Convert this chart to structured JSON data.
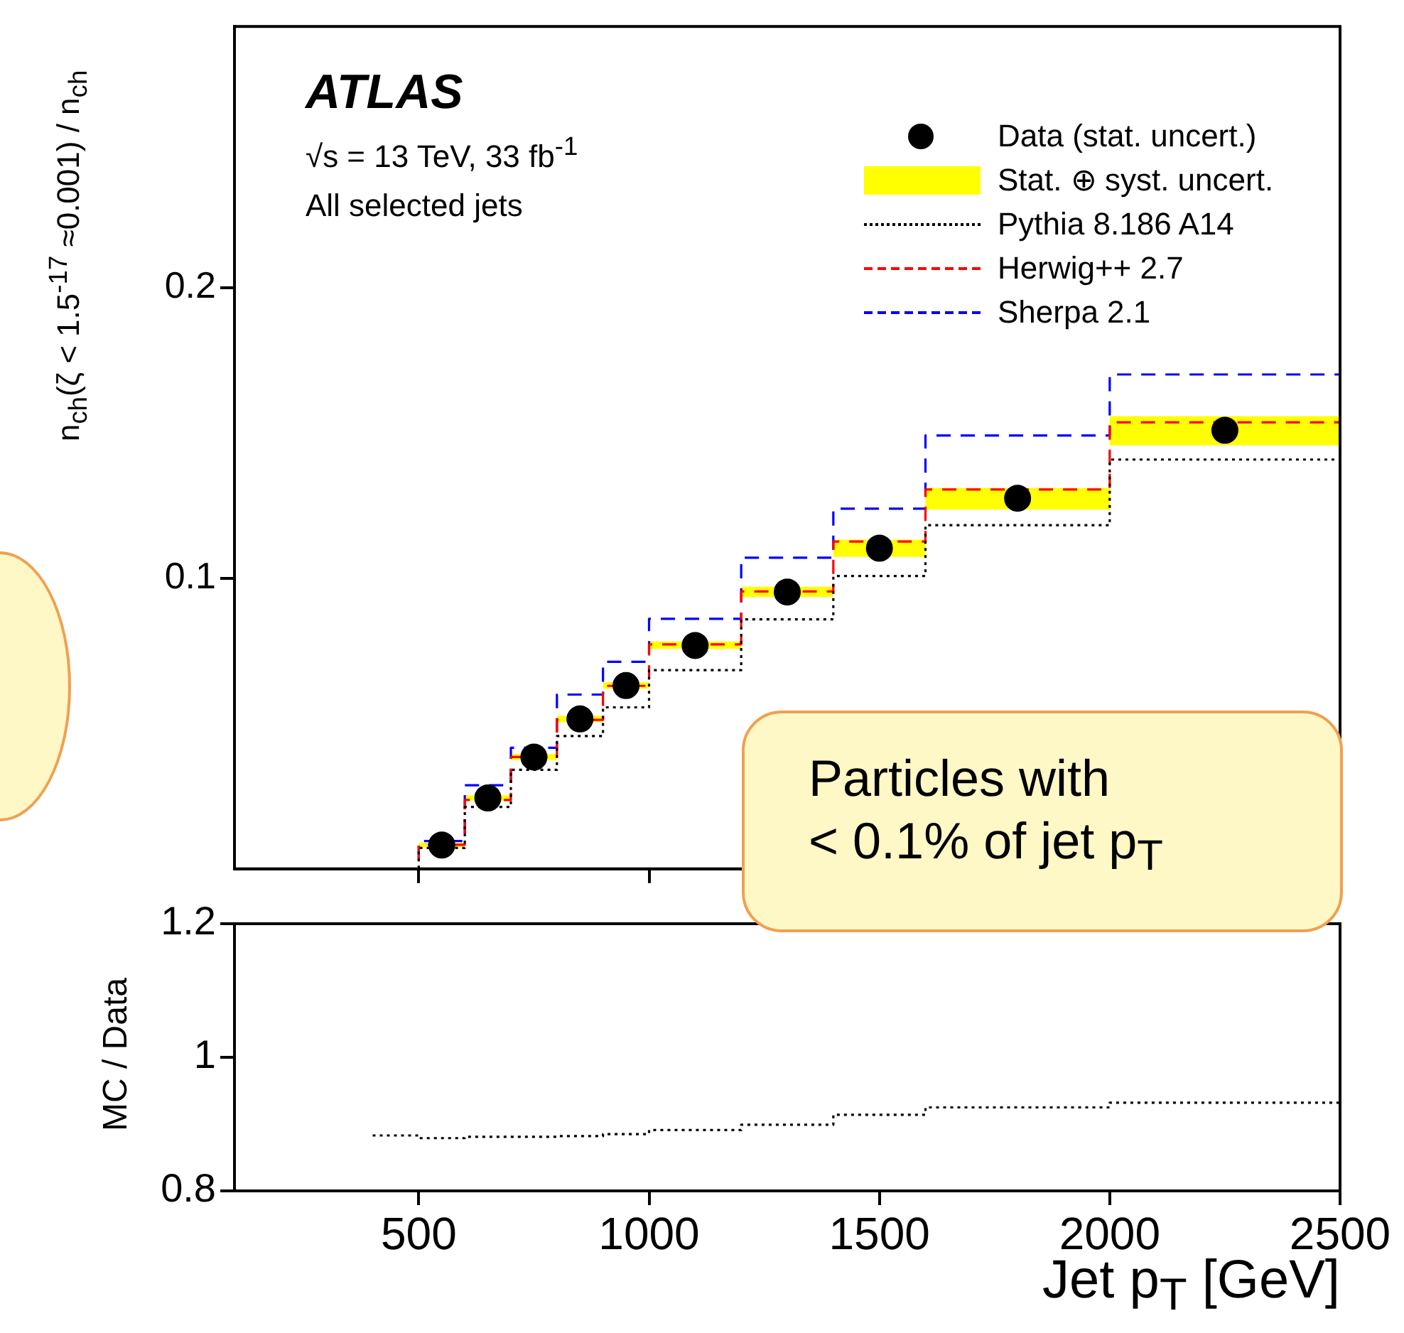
{
  "chart_data": [
    {
      "type": "step",
      "ylabel": "n$_{ch}$(ζ < 1.5$^{-17}$ ≈0.001) / n$_{ch}$",
      "annotations": [
        "ATLAS",
        "√s = 13 TeV, 33 fb$^{-1}$",
        "All selected jets",
        "Particles with  < 0.1% of jet p$_{T}$"
      ],
      "xlim": [
        100,
        2500
      ],
      "ylim": [
        0,
        0.29
      ],
      "xticks": [
        500,
        1000,
        1500,
        2000,
        2500
      ],
      "yticks": [
        0.1,
        0.2
      ],
      "tick_labels": "y",
      "grid": false,
      "legend": "top right",
      "series": [
        {
          "name": "Data (stat. uncert.)",
          "type": "scatter",
          "marker": "circle",
          "color": "#000000",
          "x": [
            550,
            650,
            750,
            850,
            950,
            1100,
            1300,
            1500,
            1800,
            2250
          ],
          "values": [
            0.0082,
            0.0244,
            0.0385,
            0.0516,
            0.0631,
            0.0769,
            0.0953,
            0.1104,
            0.1276,
            0.151
          ]
        },
        {
          "name": "Stat. ⊕ syst. uncert.",
          "type": "area",
          "color": "#ffff00",
          "x": [
            500,
            600,
            700,
            800,
            900,
            1000,
            1200,
            1400,
            1600,
            2000,
            2500
          ],
          "values": [
            null,
            null,
            null,
            null,
            null,
            null,
            null,
            null,
            null,
            null,
            null
          ],
          "lower": [
            0.0075,
            0.0235,
            0.0375,
            0.0505,
            0.062,
            0.0757,
            0.0936,
            0.1074,
            0.1237,
            0.1458,
            0.1458
          ],
          "upper": [
            0.009,
            0.0253,
            0.0395,
            0.0527,
            0.0642,
            0.0783,
            0.0971,
            0.1133,
            0.1311,
            0.1558,
            0.1558
          ]
        },
        {
          "name": "Pythia 8.186 A14",
          "line_style": "dotted",
          "color": "#000000",
          "x": [
            100,
            500,
            600,
            700,
            800,
            900,
            1000,
            1200,
            1400,
            1600,
            2000,
            2500
          ],
          "values": [
            0,
            0.0072,
            0.0213,
            0.0341,
            0.0457,
            0.0556,
            0.0684,
            0.0859,
            0.1008,
            0.1183,
            0.1409,
            0.1409
          ]
        },
        {
          "name": "Herwig++ 2.7",
          "line_style": "dashed",
          "color": "#ff0000",
          "x": [
            100,
            500,
            600,
            700,
            800,
            900,
            1000,
            1200,
            1400,
            1600,
            2000,
            2500
          ],
          "values": [
            0,
            0.0083,
            0.0237,
            0.0385,
            0.0513,
            0.063,
            0.0773,
            0.0955,
            0.1127,
            0.1306,
            0.1537,
            0.1537
          ]
        },
        {
          "name": "Sherpa 2.1",
          "line_style": "dashed",
          "color": "#0000ff",
          "x": [
            100,
            500,
            600,
            700,
            800,
            900,
            1000,
            1200,
            1400,
            1600,
            2000,
            2500
          ],
          "values": [
            0,
            0.0096,
            0.0288,
            0.0417,
            0.06,
            0.0713,
            0.0861,
            0.1071,
            0.124,
            0.1492,
            0.1702,
            0.1702
          ]
        }
      ]
    },
    {
      "type": "step",
      "xlabel": "Jet p$_{T}$ [GeV]",
      "ylabel": "MC / Data",
      "xlim": [
        100,
        2500
      ],
      "ylim": [
        0.8,
        1.2
      ],
      "xticks": [
        500,
        1000,
        1500,
        2000,
        2500
      ],
      "yticks": [
        0.8,
        1,
        1.2
      ],
      "grid": false,
      "series": [
        {
          "line_style": "dotted",
          "color": "#000000",
          "x": [
            400,
            500,
            600,
            700,
            800,
            900,
            1000,
            1200,
            1400,
            1600,
            2000,
            2500
          ],
          "values": [
            0.883,
            0.879,
            0.881,
            0.881,
            0.882,
            0.885,
            0.891,
            0.899,
            0.914,
            0.925,
            0.932,
            0.932
          ]
        }
      ]
    }
  ]
}
